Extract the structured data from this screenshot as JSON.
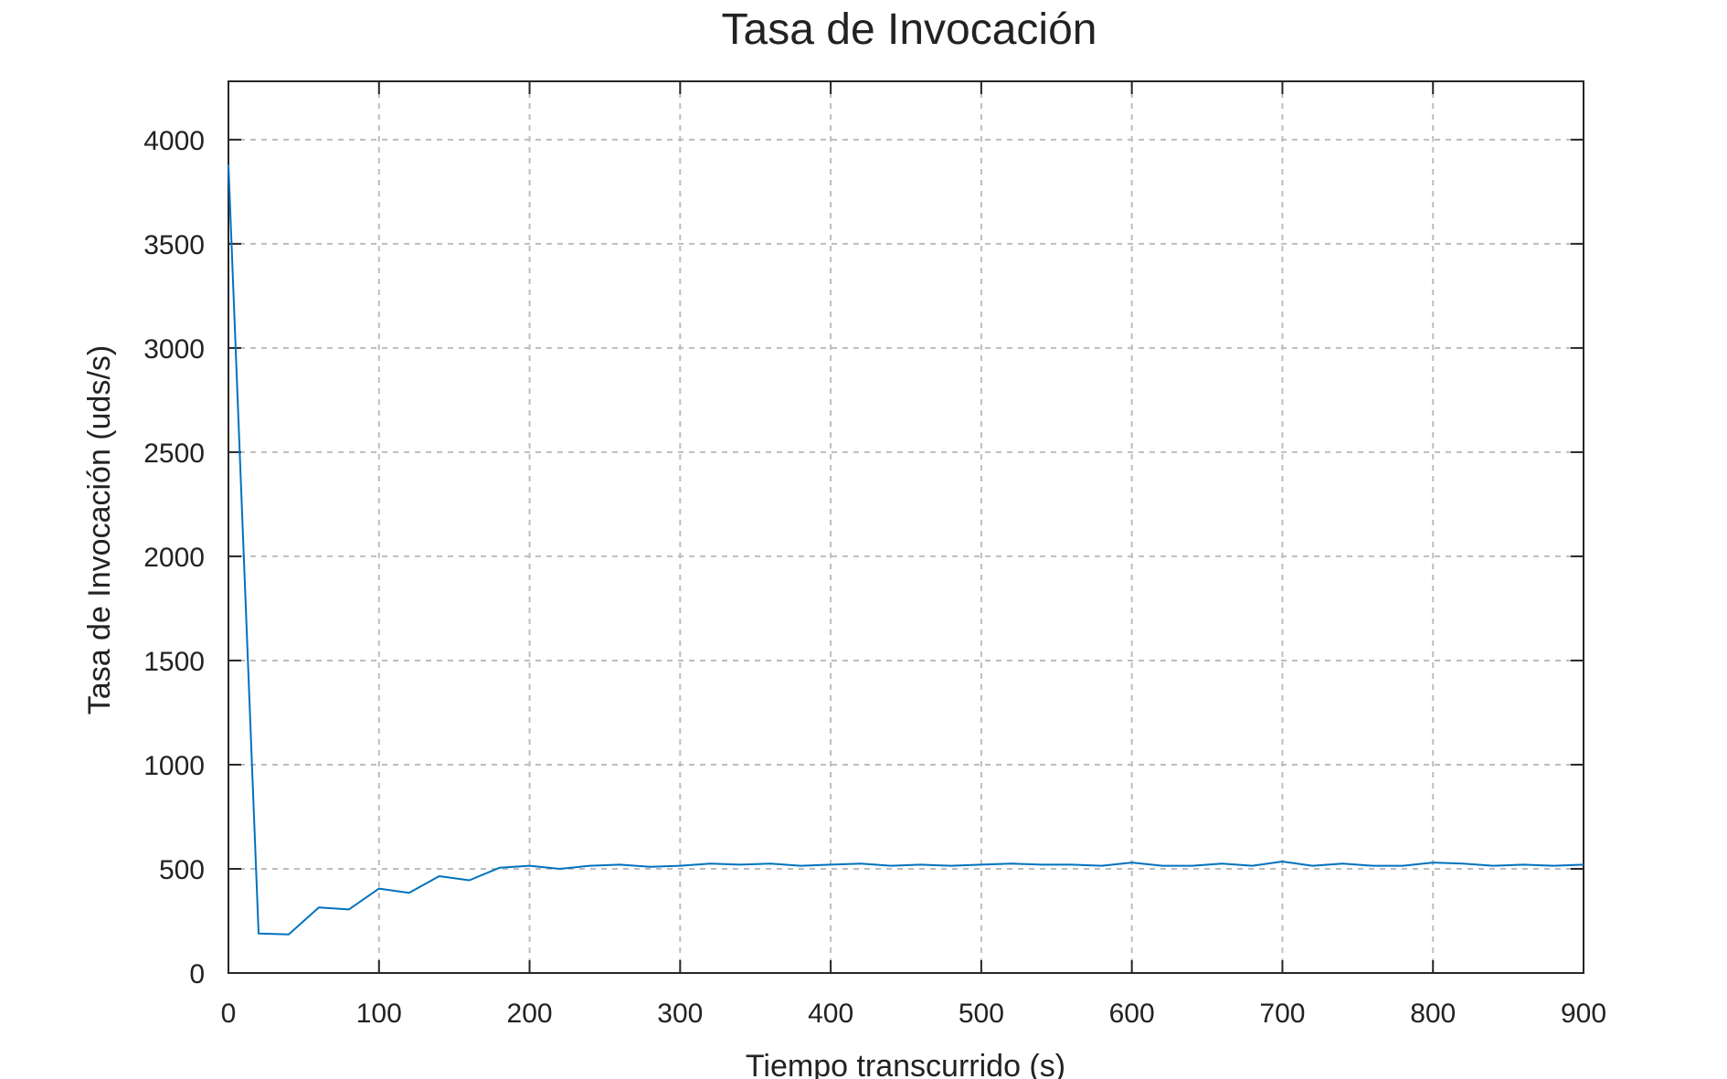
{
  "chart_data": {
    "type": "line",
    "title": "Tasa de Invocación",
    "xlabel": "Tiempo transcurrido (s)",
    "ylabel": "Tasa de Invocación (uds/s)",
    "xlim": [
      0,
      900
    ],
    "ylim": [
      0,
      4280
    ],
    "xticks": [
      0,
      100,
      200,
      300,
      400,
      500,
      600,
      700,
      800,
      900
    ],
    "yticks": [
      0,
      500,
      1000,
      1500,
      2000,
      2500,
      3000,
      3500,
      4000
    ],
    "xtick_labels": [
      "0",
      "100",
      "200",
      "300",
      "400",
      "500",
      "600",
      "700",
      "800",
      "900"
    ],
    "ytick_labels": [
      "0",
      "500",
      "1000",
      "1500",
      "2000",
      "2500",
      "3000",
      "3500",
      "4000"
    ],
    "grid": true,
    "series": [
      {
        "color": "#0072BD",
        "x": [
          0,
          20,
          40,
          60,
          80,
          100,
          120,
          140,
          160,
          180,
          200,
          220,
          240,
          260,
          280,
          300,
          320,
          340,
          360,
          380,
          400,
          420,
          440,
          460,
          480,
          500,
          520,
          540,
          560,
          580,
          600,
          620,
          640,
          660,
          680,
          700,
          720,
          740,
          760,
          780,
          800,
          820,
          840,
          860,
          880,
          900
        ],
        "y": [
          3880,
          190,
          185,
          315,
          305,
          405,
          385,
          465,
          445,
          505,
          515,
          500,
          515,
          520,
          510,
          515,
          525,
          520,
          525,
          515,
          520,
          525,
          515,
          520,
          515,
          520,
          525,
          520,
          520,
          515,
          530,
          515,
          515,
          525,
          515,
          535,
          515,
          525,
          515,
          515,
          530,
          525,
          515,
          520,
          515,
          520
        ]
      }
    ]
  }
}
